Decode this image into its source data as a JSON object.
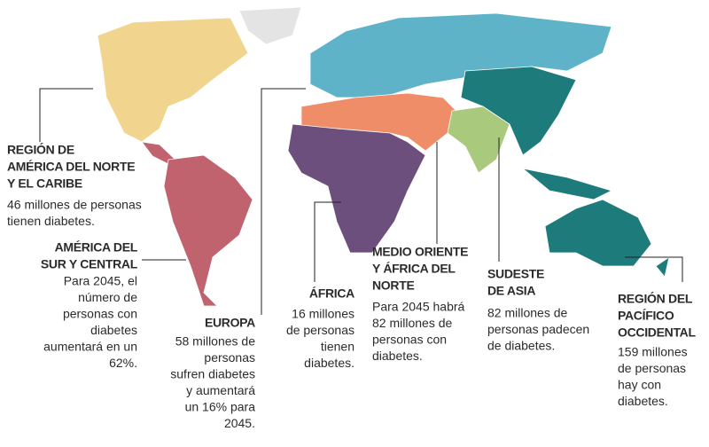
{
  "regions": [
    {
      "name": [
        "REGIÓN DE",
        "AMÉRICA DEL NORTE",
        "Y EL CARIBE"
      ],
      "description": [
        "46 millones de personas",
        "tienen diabetes."
      ]
    },
    {
      "name": [
        "AMÉRICA DEL",
        "SUR Y CENTRAL"
      ],
      "description": [
        "Para 2045, el",
        "número de",
        "personas con",
        "diabetes",
        "aumentará en un",
        "62%."
      ]
    },
    {
      "name": [
        "EUROPA"
      ],
      "description": [
        "58 millones de",
        "personas",
        "sufren diabetes",
        "y aumentará",
        "un 16% para",
        "2045."
      ]
    },
    {
      "name": [
        "ÁFRICA"
      ],
      "description": [
        "16 millones",
        "de personas",
        "tienen",
        "diabetes."
      ]
    },
    {
      "name": [
        "MEDIO ORIENTE",
        "Y ÁFRICA DEL",
        "NORTE"
      ],
      "description": [
        "Para 2045 habrá",
        "82 millones de",
        "personas con",
        "diabetes."
      ]
    },
    {
      "name": [
        "SUDESTE",
        "DE ASIA"
      ],
      "description": [
        "82 millones de",
        "personas padecen",
        "de diabetes."
      ]
    },
    {
      "name": [
        "REGIÓN DEL",
        "PACÍFICO",
        "OCCIDENTAL"
      ],
      "description": [
        "159 millones",
        "de personas",
        "hay con",
        "diabetes."
      ]
    }
  ]
}
